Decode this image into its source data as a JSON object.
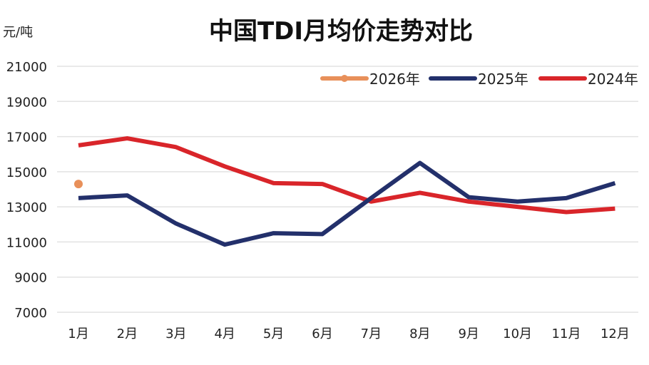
{
  "chart_data": {
    "type": "line",
    "title": "中国TDI月均价走势对比",
    "ylabel": "元/吨",
    "xlabel": "",
    "categories": [
      "1月",
      "2月",
      "3月",
      "4月",
      "5月",
      "6月",
      "7月",
      "8月",
      "9月",
      "10月",
      "11月",
      "12月"
    ],
    "ylim": [
      7000,
      21000
    ],
    "yticks": [
      7000,
      9000,
      11000,
      13000,
      15000,
      17000,
      19000,
      21000
    ],
    "grid": true,
    "legend_position": "top-right",
    "series": [
      {
        "name": "2026年",
        "color": "#e8905a",
        "values": [
          14300,
          null,
          null,
          null,
          null,
          null,
          null,
          null,
          null,
          null,
          null,
          null
        ]
      },
      {
        "name": "2025年",
        "color": "#23306b",
        "values": [
          13500,
          13650,
          12050,
          10850,
          11500,
          11450,
          13500,
          15500,
          13550,
          13300,
          13500,
          14350
        ]
      },
      {
        "name": "2024年",
        "color": "#d9252a",
        "values": [
          16500,
          16900,
          16400,
          15300,
          14350,
          14300,
          13300,
          13800,
          13300,
          13000,
          12700,
          12900
        ]
      }
    ]
  }
}
